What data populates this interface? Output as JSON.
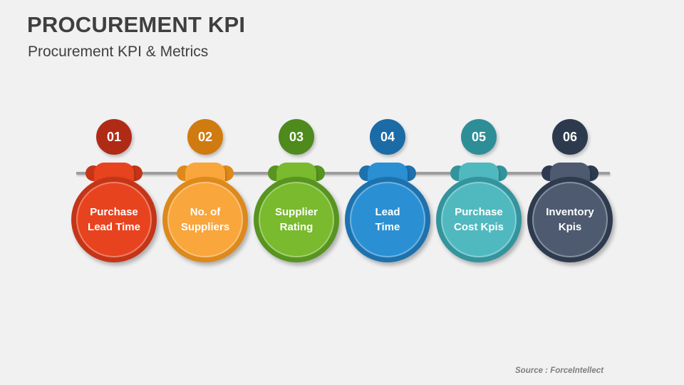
{
  "slide": {
    "title": "PROCUREMENT KPI",
    "subtitle": "Procurement KPI & Metrics",
    "source": "Source : ForceIntellect",
    "background_color": "#f1f1f2",
    "timeline_color": "#9d9d9d",
    "title_color": "#3f3f3f",
    "source_color": "#7f7f7f"
  },
  "kpis": [
    {
      "number": "01",
      "label": "Purchase Lead Time",
      "lines": [
        "Purchase",
        "Lead Time"
      ],
      "colors": {
        "num": "#b02b16",
        "ring": "#c43517",
        "fill": "#e8431f"
      }
    },
    {
      "number": "02",
      "label": "No. of Suppliers",
      "lines": [
        "No. of",
        "Suppliers"
      ],
      "colors": {
        "num": "#d07b10",
        "ring": "#dd891c",
        "fill": "#f9a63c"
      }
    },
    {
      "number": "03",
      "label": "Supplier Rating",
      "lines": [
        "Supplier",
        "Rating"
      ],
      "colors": {
        "num": "#4e8a1c",
        "ring": "#579420",
        "fill": "#79ba2e"
      }
    },
    {
      "number": "04",
      "label": "Lead Time",
      "lines": [
        "Lead",
        "Time"
      ],
      "colors": {
        "num": "#1b6ba6",
        "ring": "#1d72ae",
        "fill": "#2b90d3"
      }
    },
    {
      "number": "05",
      "label": "Purchase Cost Kpis",
      "lines": [
        "Purchase",
        "Cost Kpis"
      ],
      "colors": {
        "num": "#2d8e98",
        "ring": "#33949d",
        "fill": "#4fb9bf"
      }
    },
    {
      "number": "06",
      "label": "Inventory Kpis",
      "lines": [
        "Inventory",
        "Kpis"
      ],
      "colors": {
        "num": "#2d3a4e",
        "ring": "#2e3b4f",
        "fill": "#4d5a70"
      }
    }
  ]
}
